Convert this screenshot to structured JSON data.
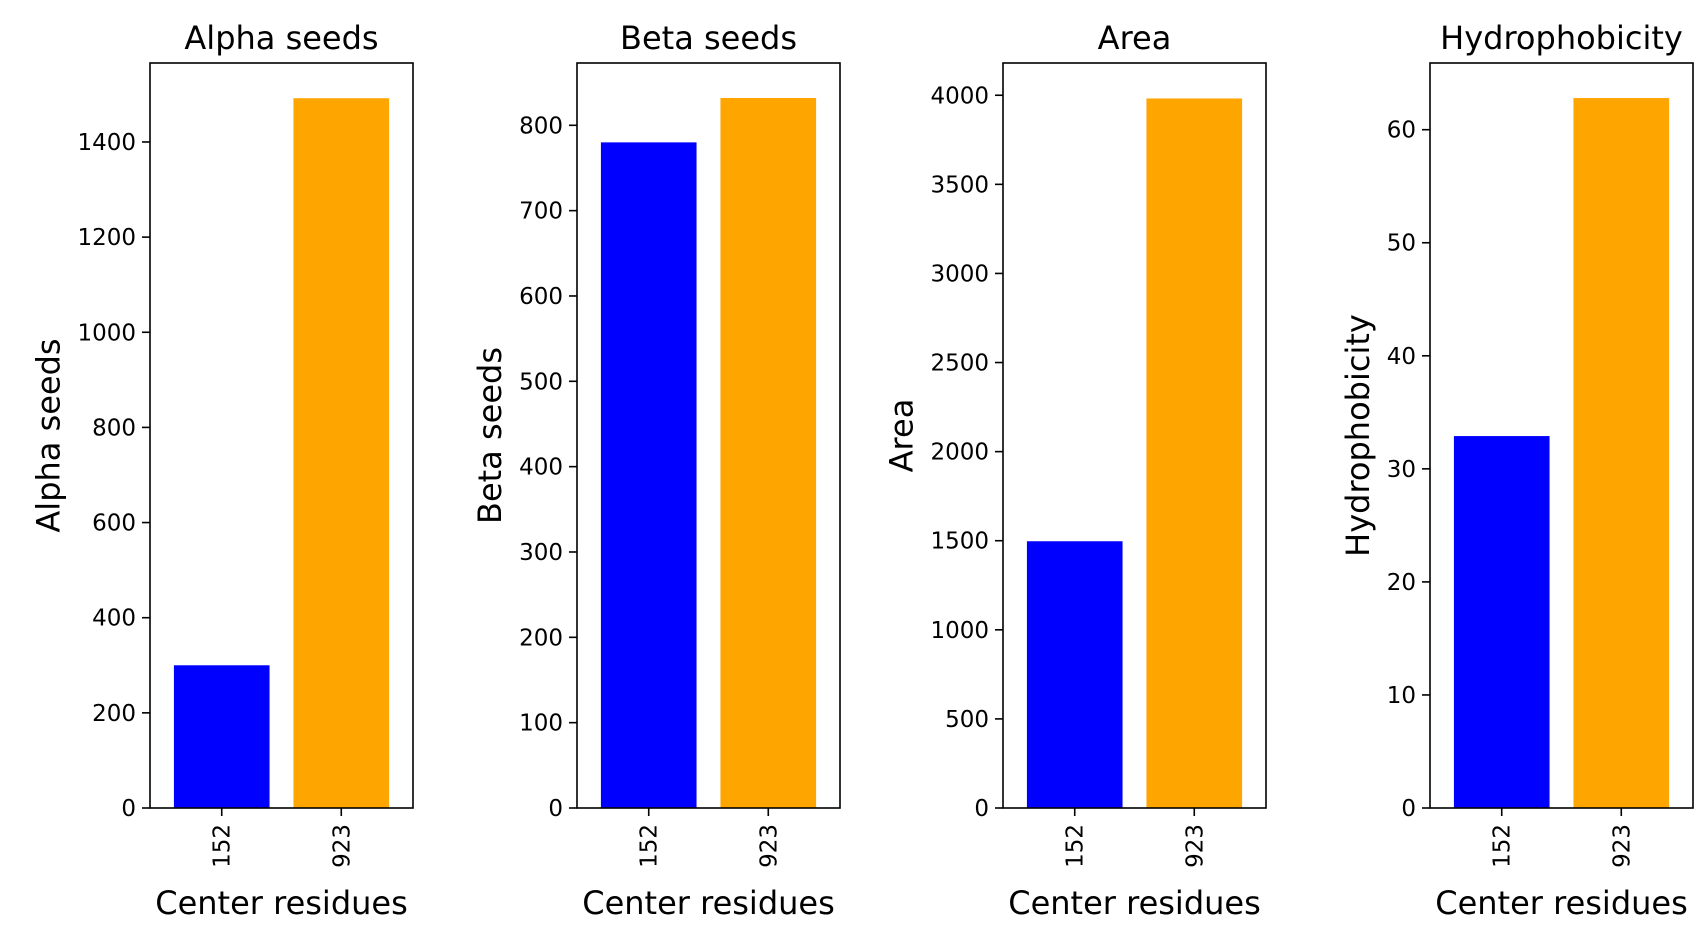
{
  "chart_data": [
    {
      "type": "bar",
      "title": "Alpha seeds",
      "xlabel": "Center residues",
      "ylabel": "Alpha seeds",
      "categories": [
        "152",
        "923"
      ],
      "values": [
        300,
        1492
      ],
      "colors": [
        "#0000ff",
        "#ffa500"
      ],
      "ylim": [
        0,
        1566
      ],
      "yticks": [
        0,
        200,
        400,
        600,
        800,
        1000,
        1200,
        1400
      ],
      "grid": false
    },
    {
      "type": "bar",
      "title": "Beta seeds",
      "xlabel": "Center residues",
      "ylabel": "Beta seeds",
      "categories": [
        "152",
        "923"
      ],
      "values": [
        780,
        832
      ],
      "colors": [
        "#0000ff",
        "#ffa500"
      ],
      "ylim": [
        0,
        873
      ],
      "yticks": [
        0,
        100,
        200,
        300,
        400,
        500,
        600,
        700,
        800
      ],
      "grid": false
    },
    {
      "type": "bar",
      "title": "Area",
      "xlabel": "Center residues",
      "ylabel": "Area",
      "categories": [
        "152",
        "923"
      ],
      "values": [
        1497,
        3982
      ],
      "colors": [
        "#0000ff",
        "#ffa500"
      ],
      "ylim": [
        0,
        4181
      ],
      "yticks": [
        0,
        500,
        1000,
        1500,
        2000,
        2500,
        3000,
        3500,
        4000
      ],
      "grid": false
    },
    {
      "type": "bar",
      "title": "Hydrophobicity",
      "xlabel": "Center residues",
      "ylabel": "Hydrophobicity",
      "categories": [
        "152",
        "923"
      ],
      "values": [
        32.9,
        62.8
      ],
      "colors": [
        "#0000ff",
        "#ffa500"
      ],
      "ylim": [
        0,
        65.9
      ],
      "yticks": [
        0,
        10,
        20,
        30,
        40,
        50,
        60
      ],
      "grid": false
    }
  ]
}
